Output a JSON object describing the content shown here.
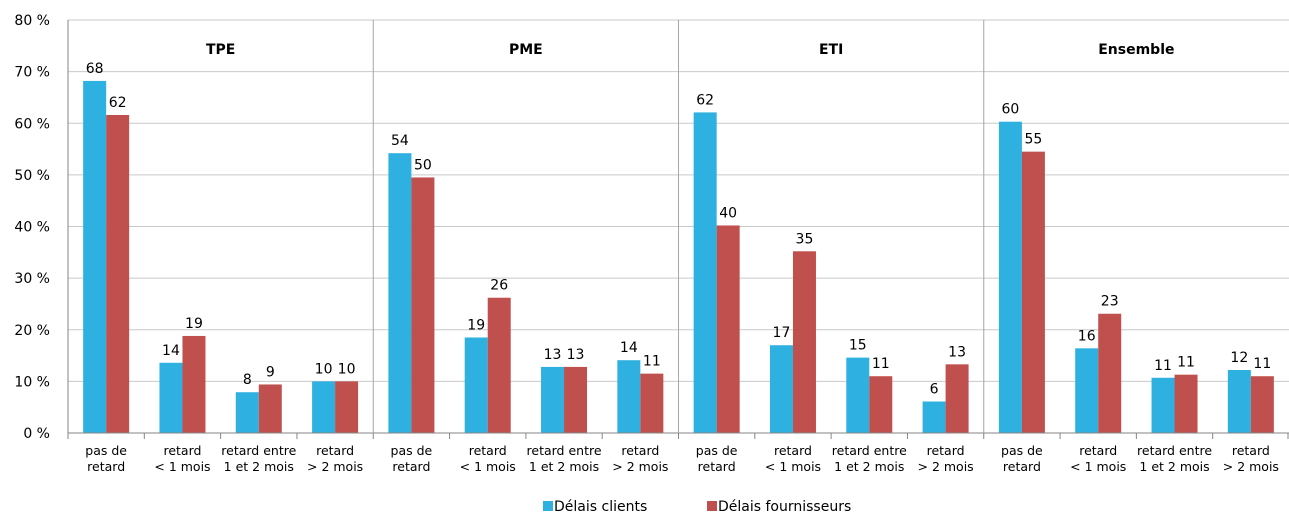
{
  "chart_data": {
    "type": "bar",
    "y_axis": {
      "min": 0,
      "max": 80,
      "step": 10,
      "tick_suffix": " %"
    },
    "grid": true,
    "legend_position": "bottom-center",
    "panels": [
      "TPE",
      "PME",
      "ETI",
      "Ensemble"
    ],
    "categories": [
      [
        "pas de",
        "retard"
      ],
      [
        "retard",
        "< 1 mois"
      ],
      [
        "retard entre",
        "1 et 2 mois"
      ],
      [
        "retard",
        "> 2 mois"
      ]
    ],
    "series": [
      {
        "name": "Délais clients",
        "color": "#2eb0e0",
        "values": [
          [
            68.2,
            13.6,
            7.9,
            10.0
          ],
          [
            54.2,
            18.5,
            12.8,
            14.1
          ],
          [
            62.1,
            17.0,
            14.6,
            6.1
          ],
          [
            60.3,
            16.4,
            10.7,
            12.2
          ]
        ],
        "labels": [
          [
            "68",
            "14",
            "8",
            "10"
          ],
          [
            "54",
            "19",
            "13",
            "14"
          ],
          [
            "62",
            "17",
            "15",
            "6"
          ],
          [
            "60",
            "16",
            "11",
            "12"
          ]
        ]
      },
      {
        "name": "Délais fournisseurs",
        "color": "#c0504d",
        "values": [
          [
            61.6,
            18.8,
            9.4,
            10.0
          ],
          [
            49.5,
            26.2,
            12.8,
            11.5
          ],
          [
            40.2,
            35.2,
            11.0,
            13.3
          ],
          [
            54.5,
            23.1,
            11.3,
            11.0
          ]
        ],
        "labels": [
          [
            "62",
            "19",
            "9",
            "10"
          ],
          [
            "50",
            "26",
            "13",
            "11"
          ],
          [
            "40",
            "35",
            "11",
            "13"
          ],
          [
            "55",
            "23",
            "11",
            "11"
          ]
        ]
      }
    ],
    "colors": {
      "grid": "#c9c9c9",
      "axis": "#868686",
      "panel_divider": "#a6a6a6"
    }
  }
}
